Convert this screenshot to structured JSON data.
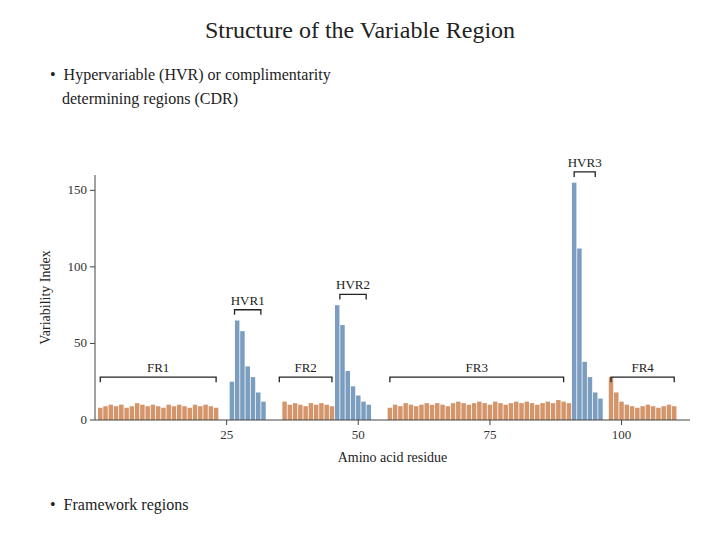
{
  "chart_data": {
    "type": "bar",
    "title": "Structure of the Variable Region",
    "subtitle": [
      "•  Hypervariable (HVR) or complimentarity",
      "   determining regions (CDR)"
    ],
    "caption": "•  Framework regions",
    "x_label": "Amino acid residue",
    "y_label": "Variability Index",
    "x": [
      1,
      2,
      3,
      4,
      5,
      6,
      7,
      8,
      9,
      10,
      11,
      12,
      13,
      14,
      15,
      16,
      17,
      18,
      19,
      20,
      21,
      22,
      23,
      26,
      27,
      28,
      29,
      30,
      31,
      32,
      36,
      37,
      38,
      39,
      40,
      41,
      42,
      43,
      44,
      45,
      46,
      47,
      48,
      49,
      50,
      51,
      52,
      56,
      57,
      58,
      59,
      60,
      61,
      62,
      63,
      64,
      65,
      66,
      67,
      68,
      69,
      70,
      71,
      72,
      73,
      74,
      75,
      76,
      77,
      78,
      79,
      80,
      81,
      82,
      83,
      84,
      85,
      86,
      87,
      88,
      89,
      90,
      91,
      92,
      93,
      94,
      95,
      96,
      98,
      99,
      100,
      101,
      102,
      103,
      104,
      105,
      106,
      107,
      108,
      109,
      110
    ],
    "values": [
      8,
      9,
      10,
      9,
      10,
      8,
      9,
      11,
      10,
      9,
      10,
      9,
      8,
      10,
      9,
      10,
      9,
      8,
      10,
      9,
      10,
      9,
      8,
      25,
      65,
      58,
      35,
      28,
      18,
      12,
      12,
      10,
      11,
      10,
      9,
      11,
      10,
      11,
      10,
      9,
      75,
      62,
      32,
      22,
      16,
      12,
      10,
      8,
      10,
      9,
      11,
      10,
      9,
      10,
      11,
      10,
      11,
      10,
      9,
      11,
      12,
      11,
      10,
      11,
      12,
      11,
      10,
      12,
      11,
      10,
      11,
      12,
      11,
      12,
      11,
      10,
      11,
      12,
      11,
      13,
      12,
      11,
      155,
      112,
      38,
      28,
      18,
      14,
      28,
      18,
      12,
      10,
      9,
      8,
      9,
      10,
      9,
      8,
      9,
      10,
      9
    ],
    "colors": [
      "#d4956a",
      "#d4956a",
      "#d4956a",
      "#d4956a",
      "#d4956a",
      "#d4956a",
      "#d4956a",
      "#d4956a",
      "#d4956a",
      "#d4956a",
      "#d4956a",
      "#d4956a",
      "#d4956a",
      "#d4956a",
      "#d4956a",
      "#d4956a",
      "#d4956a",
      "#d4956a",
      "#d4956a",
      "#d4956a",
      "#d4956a",
      "#d4956a",
      "#d4956a",
      "#7b9dbf",
      "#7b9dbf",
      "#7b9dbf",
      "#7b9dbf",
      "#7b9dbf",
      "#7b9dbf",
      "#7b9dbf",
      "#d4956a",
      "#d4956a",
      "#d4956a",
      "#d4956a",
      "#d4956a",
      "#d4956a",
      "#d4956a",
      "#d4956a",
      "#d4956a",
      "#d4956a",
      "#7b9dbf",
      "#7b9dbf",
      "#7b9dbf",
      "#7b9dbf",
      "#7b9dbf",
      "#7b9dbf",
      "#7b9dbf",
      "#d4956a",
      "#d4956a",
      "#d4956a",
      "#d4956a",
      "#d4956a",
      "#d4956a",
      "#d4956a",
      "#d4956a",
      "#d4956a",
      "#d4956a",
      "#d4956a",
      "#d4956a",
      "#d4956a",
      "#d4956a",
      "#d4956a",
      "#d4956a",
      "#d4956a",
      "#d4956a",
      "#d4956a",
      "#d4956a",
      "#d4956a",
      "#d4956a",
      "#d4956a",
      "#d4956a",
      "#d4956a",
      "#d4956a",
      "#d4956a",
      "#d4956a",
      "#d4956a",
      "#d4956a",
      "#d4956a",
      "#d4956a",
      "#d4956a",
      "#d4956a",
      "#d4956a",
      "#7b9dbf",
      "#7b9dbf",
      "#7b9dbf",
      "#7b9dbf",
      "#7b9dbf",
      "#7b9dbf",
      "#d4956a",
      "#d4956a",
      "#d4956a",
      "#d4956a",
      "#d4956a",
      "#d4956a",
      "#d4956a",
      "#d4956a",
      "#d4956a",
      "#d4956a",
      "#d4956a",
      "#d4956a",
      "#d4956a"
    ],
    "xlim": [
      0,
      113
    ],
    "ylim": [
      0,
      160
    ],
    "xticks": [
      25,
      50,
      75,
      100
    ],
    "yticks": [
      0,
      50,
      100,
      150
    ],
    "grid": false,
    "annotations": [
      {
        "text": "FR1",
        "x": [
          1,
          23
        ],
        "y": 28
      },
      {
        "text": "FR2",
        "x": [
          35,
          45
        ],
        "y": 28
      },
      {
        "text": "FR3",
        "x": [
          56,
          89
        ],
        "y": 28
      },
      {
        "text": "FR4",
        "x": [
          98,
          110
        ],
        "y": 28
      },
      {
        "text": "HVR1",
        "x": [
          26.5,
          31.5
        ],
        "y": 72
      },
      {
        "text": "HVR2",
        "x": [
          46.5,
          51.5
        ],
        "y": 82
      },
      {
        "text": "HVR3",
        "x": [
          91,
          95
        ],
        "y": 162
      }
    ]
  }
}
